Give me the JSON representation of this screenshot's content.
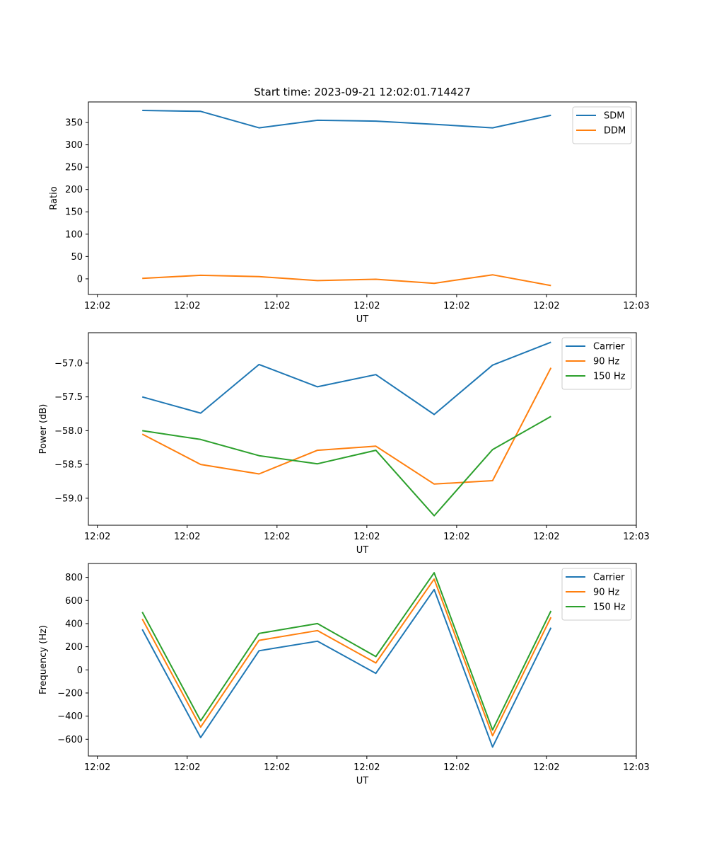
{
  "figure": {
    "title": "Start time: 2023-09-21 12:02:01.714427"
  },
  "chart_data": [
    {
      "type": "line",
      "title": "Start time: 2023-09-21 12:02:01.714427",
      "xlabel": "UT",
      "ylabel": "Ratio",
      "x": [
        0.5,
        1.15,
        1.8,
        2.45,
        3.1,
        3.75,
        4.4,
        5.05
      ],
      "xlim": [
        -0.1,
        6.0
      ],
      "xticks": [
        0,
        1,
        2,
        3,
        4,
        5,
        6
      ],
      "xtick_labels": [
        "12:02",
        "12:02",
        "12:02",
        "12:02",
        "12:02",
        "12:02",
        "12:03"
      ],
      "ylim": [
        -35,
        396
      ],
      "yticks": [
        0,
        50,
        100,
        150,
        200,
        250,
        300,
        350
      ],
      "ytick_labels": [
        "0",
        "50",
        "100",
        "150",
        "200",
        "250",
        "300",
        "350"
      ],
      "legend_position": "top-right",
      "series": [
        {
          "name": "SDM",
          "color": "#1f77b4",
          "values": [
            377,
            375,
            338,
            355,
            353,
            346,
            338,
            366
          ]
        },
        {
          "name": "DDM",
          "color": "#ff7f0e",
          "values": [
            1,
            8,
            5,
            -4,
            -1,
            -10,
            9,
            -15
          ]
        }
      ]
    },
    {
      "type": "line",
      "title": "",
      "xlabel": "UT",
      "ylabel": "Power (dB)",
      "x": [
        0.5,
        1.15,
        1.8,
        2.45,
        3.1,
        3.75,
        4.4,
        5.05
      ],
      "xlim": [
        -0.1,
        6.0
      ],
      "xticks": [
        0,
        1,
        2,
        3,
        4,
        5,
        6
      ],
      "xtick_labels": [
        "12:02",
        "12:02",
        "12:02",
        "12:02",
        "12:02",
        "12:02",
        "12:03"
      ],
      "ylim": [
        -59.4,
        -56.55
      ],
      "yticks": [
        -59.0,
        -58.5,
        -58.0,
        -57.5,
        -57.0
      ],
      "ytick_labels": [
        "−59.0",
        "−58.5",
        "−58.0",
        "−57.5",
        "−57.0"
      ],
      "legend_position": "top-right",
      "series": [
        {
          "name": "Carrier",
          "color": "#1f77b4",
          "values": [
            -57.5,
            -57.74,
            -57.02,
            -57.35,
            -57.17,
            -57.76,
            -57.03,
            -56.69
          ]
        },
        {
          "name": "90 Hz",
          "color": "#ff7f0e",
          "values": [
            -58.05,
            -58.5,
            -58.64,
            -58.29,
            -58.23,
            -58.79,
            -58.74,
            -57.07
          ]
        },
        {
          "name": "150 Hz",
          "color": "#2ca02c",
          "values": [
            -58.0,
            -58.13,
            -58.37,
            -58.49,
            -58.29,
            -59.26,
            -58.28,
            -57.79
          ]
        }
      ]
    },
    {
      "type": "line",
      "title": "",
      "xlabel": "UT",
      "ylabel": "Frequency (Hz)",
      "x": [
        0.5,
        1.15,
        1.8,
        2.45,
        3.1,
        3.75,
        4.4,
        5.05
      ],
      "xlim": [
        -0.1,
        6.0
      ],
      "xticks": [
        0,
        1,
        2,
        3,
        4,
        5,
        6
      ],
      "xtick_labels": [
        "12:02",
        "12:02",
        "12:02",
        "12:02",
        "12:02",
        "12:02",
        "12:03"
      ],
      "ylim": [
        -745,
        920
      ],
      "yticks": [
        -600,
        -400,
        -200,
        0,
        200,
        400,
        600,
        800
      ],
      "ytick_labels": [
        "−600",
        "−400",
        "−200",
        "0",
        "200",
        "400",
        "600",
        "800"
      ],
      "legend_position": "top-right",
      "series": [
        {
          "name": "Carrier",
          "color": "#1f77b4",
          "values": [
            350,
            -585,
            165,
            248,
            -30,
            695,
            -667,
            365
          ]
        },
        {
          "name": "90 Hz",
          "color": "#ff7f0e",
          "values": [
            440,
            -495,
            255,
            340,
            60,
            785,
            -570,
            455
          ]
        },
        {
          "name": "150 Hz",
          "color": "#2ca02c",
          "values": [
            500,
            -440,
            315,
            400,
            115,
            840,
            -520,
            510
          ]
        }
      ]
    }
  ]
}
